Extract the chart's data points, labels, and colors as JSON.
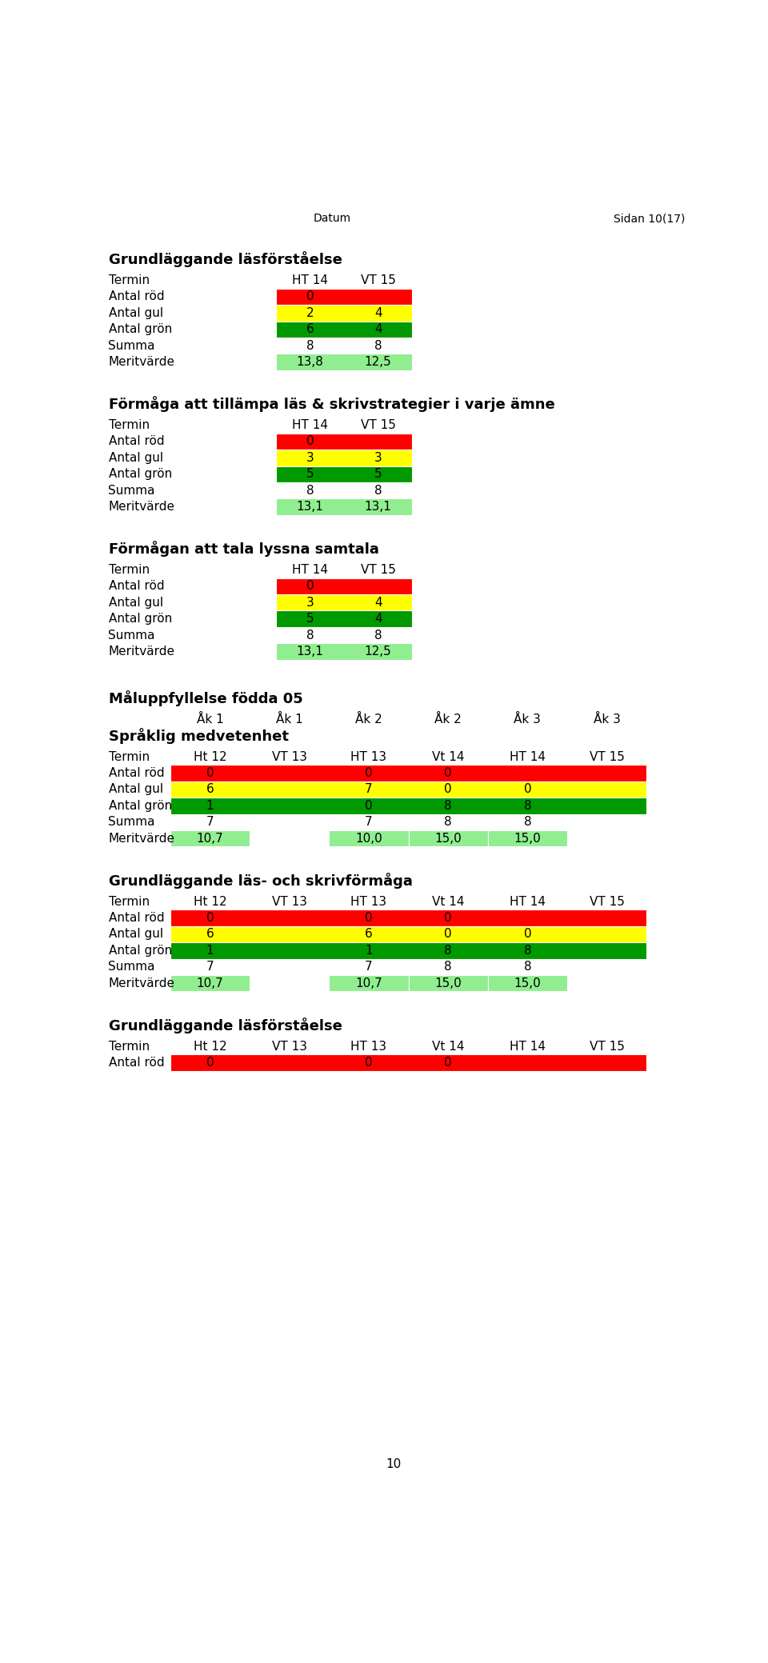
{
  "page_header_left": "Datum",
  "page_header_right": "Sidan 10(17)",
  "sections": [
    {
      "title": "Grundläggande läsförståelse",
      "termin_labels": [
        "HT 14",
        "VT 15"
      ],
      "rod": [
        "0",
        ""
      ],
      "gul": [
        "2",
        "4"
      ],
      "gron": [
        "6",
        "4"
      ],
      "summa": [
        "8",
        "8"
      ],
      "merit": [
        "13,8",
        "12,5"
      ]
    },
    {
      "title": "Förmåga att tillämpa läs & skrivstrategier i varje ämne",
      "termin_labels": [
        "HT 14",
        "VT 15"
      ],
      "rod": [
        "0",
        ""
      ],
      "gul": [
        "3",
        "3"
      ],
      "gron": [
        "5",
        "5"
      ],
      "summa": [
        "8",
        "8"
      ],
      "merit": [
        "13,1",
        "13,1"
      ]
    },
    {
      "title": "Förmågan att tala lyssna samtala",
      "termin_labels": [
        "HT 14",
        "VT 15"
      ],
      "rod": [
        "0",
        ""
      ],
      "gul": [
        "3",
        "4"
      ],
      "gron": [
        "5",
        "4"
      ],
      "summa": [
        "8",
        "8"
      ],
      "merit": [
        "13,1",
        "12,5"
      ]
    }
  ],
  "maluppfyllelse_title": "Måluppfyllelse födda 05",
  "ak_headers": [
    "Åk 1",
    "Åk 1",
    "Åk 2",
    "Åk 2",
    "Åk 3",
    "Åk 3"
  ],
  "sub_sections": [
    {
      "title": "Språklig medvetenhet",
      "termin_labels": [
        "Ht 12",
        "VT 13",
        "HT 13",
        "Vt 14",
        "HT 14",
        "VT 15"
      ],
      "rod": [
        "0",
        "",
        "0",
        "0",
        "",
        ""
      ],
      "gul": [
        "6",
        "",
        "7",
        "0",
        "0",
        ""
      ],
      "gron": [
        "1",
        "",
        "0",
        "8",
        "8",
        ""
      ],
      "summa": [
        "7",
        "",
        "7",
        "8",
        "8",
        ""
      ],
      "merit": [
        "10,7",
        "",
        "10,0",
        "15,0",
        "15,0",
        ""
      ]
    },
    {
      "title": "Grundläggande läs- och skrivförmåga",
      "termin_labels": [
        "Ht 12",
        "VT 13",
        "HT 13",
        "Vt 14",
        "HT 14",
        "VT 15"
      ],
      "rod": [
        "0",
        "",
        "0",
        "0",
        "",
        ""
      ],
      "gul": [
        "6",
        "",
        "6",
        "0",
        "0",
        ""
      ],
      "gron": [
        "1",
        "",
        "1",
        "8",
        "8",
        ""
      ],
      "summa": [
        "7",
        "",
        "7",
        "8",
        "8",
        ""
      ],
      "merit": [
        "10,7",
        "",
        "10,7",
        "15,0",
        "15,0",
        ""
      ]
    },
    {
      "title": "Grundläggande läsförståelse",
      "termin_labels": [
        "Ht 12",
        "VT 13",
        "HT 13",
        "Vt 14",
        "HT 14",
        "VT 15"
      ],
      "rod": [
        "0",
        "",
        "0",
        "0",
        "",
        ""
      ],
      "gul": null,
      "gron": null,
      "summa": null,
      "merit": null
    }
  ],
  "colors": {
    "red": "#FF0000",
    "yellow": "#FFFF00",
    "green": "#009900",
    "light_green": "#90EE90",
    "white": "#FFFFFF",
    "bg": "#FFFFFF"
  }
}
